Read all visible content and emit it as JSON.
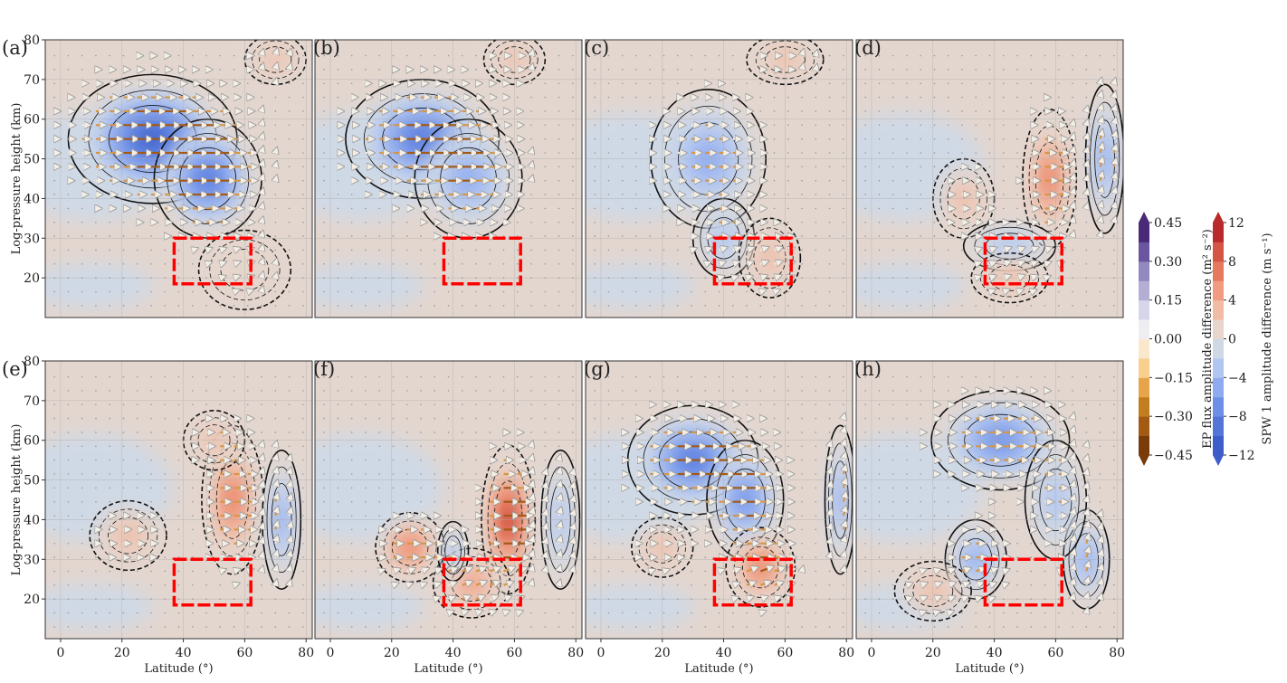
{
  "chart_data": {
    "type": "heatmap",
    "title": "",
    "xlabel": "Latitude (°)",
    "ylabel": "Log-pressure height (km)",
    "xlim": [
      -5,
      82
    ],
    "ylim": [
      10,
      80
    ],
    "xticks": [
      "0",
      "20",
      "40",
      "60",
      "80"
    ],
    "yticks": [
      "20",
      "30",
      "40",
      "50",
      "60",
      "70",
      "80"
    ],
    "xtick_values": [
      0,
      20,
      40,
      60,
      80
    ],
    "ytick_values": [
      20,
      30,
      40,
      50,
      60,
      70,
      80
    ],
    "box": {
      "lat": [
        37,
        62
      ],
      "z": [
        18.5,
        30
      ]
    },
    "panels": [
      {
        "label": "(a)",
        "anomalies": [
          [
            30,
            55,
            -12,
            22,
            13
          ],
          [
            48,
            45,
            -9,
            14,
            12
          ],
          [
            60,
            22,
            2,
            12,
            8
          ],
          [
            70,
            75,
            3,
            8,
            5
          ]
        ]
      },
      {
        "label": "(b)",
        "anomalies": [
          [
            30,
            55,
            -10,
            20,
            12
          ],
          [
            45,
            45,
            -6,
            14,
            12
          ],
          [
            60,
            75,
            3,
            8,
            5
          ]
        ]
      },
      {
        "label": "(c)",
        "anomalies": [
          [
            35,
            50,
            -6,
            15,
            14
          ],
          [
            40,
            30,
            -4,
            8,
            8
          ],
          [
            55,
            25,
            4,
            8,
            8
          ],
          [
            60,
            75,
            3,
            10,
            5
          ]
        ]
      },
      {
        "label": "(d)",
        "anomalies": [
          [
            58,
            45,
            8,
            7,
            14
          ],
          [
            30,
            40,
            3,
            8,
            8
          ],
          [
            45,
            28,
            -3,
            12,
            5
          ],
          [
            76,
            50,
            -6,
            5,
            15
          ],
          [
            45,
            20,
            3,
            10,
            5
          ]
        ]
      },
      {
        "label": "(e)",
        "anomalies": [
          [
            56,
            45,
            8,
            8,
            15
          ],
          [
            22,
            36,
            3,
            10,
            7
          ],
          [
            72,
            40,
            -5,
            5,
            14
          ],
          [
            50,
            60,
            3,
            8,
            6
          ]
        ]
      },
      {
        "label": "(f)",
        "anomalies": [
          [
            58,
            40,
            12,
            7,
            15
          ],
          [
            26,
            33,
            8,
            9,
            7
          ],
          [
            46,
            24,
            6,
            10,
            7
          ],
          [
            40,
            32,
            -3,
            4,
            6
          ],
          [
            75,
            40,
            -4,
            5,
            14
          ]
        ]
      },
      {
        "label": "(g)",
        "anomalies": [
          [
            30,
            55,
            -10,
            17,
            11
          ],
          [
            47,
            45,
            -8,
            10,
            12
          ],
          [
            52,
            28,
            8,
            9,
            8
          ],
          [
            78,
            45,
            -6,
            4,
            15
          ],
          [
            20,
            33,
            3,
            8,
            6
          ]
        ]
      },
      {
        "label": "(h)",
        "anomalies": [
          [
            42,
            60,
            -8,
            18,
            10
          ],
          [
            34,
            30,
            -6,
            8,
            8
          ],
          [
            20,
            22,
            3,
            10,
            6
          ],
          [
            70,
            30,
            -6,
            6,
            10
          ],
          [
            60,
            45,
            -4,
            8,
            12
          ]
        ]
      }
    ],
    "colorbars": [
      {
        "label": "EP flux amplitude difference (m² s⁻²)",
        "ticks": [
          "0.45",
          "0.30",
          "0.15",
          "0.00",
          "−0.15",
          "−0.30",
          "−0.45"
        ],
        "range": [
          -0.45,
          0.45
        ],
        "colors": [
          "#7a3b0a",
          "#a35a12",
          "#c47d1e",
          "#e7a44a",
          "#f8cf8d",
          "#fae8cc",
          "#eeeef2",
          "#d6d6ea",
          "#b4aed4",
          "#9088be",
          "#6a55a0",
          "#4a2a78"
        ]
      },
      {
        "label": "SPW 1 amplitude difference (m s⁻¹)",
        "ticks": [
          "12",
          "8",
          "4",
          "0",
          "−4",
          "−8",
          "−12"
        ],
        "range": [
          -12,
          12
        ],
        "colors": [
          "#3d5ec9",
          "#5375d8",
          "#6d8fe6",
          "#8fabf0",
          "#b2c6f2",
          "#cfd9e6",
          "#e6d6cc",
          "#f2bba4",
          "#f19c80",
          "#e57a5e",
          "#d45543",
          "#b92a2c"
        ]
      }
    ]
  }
}
